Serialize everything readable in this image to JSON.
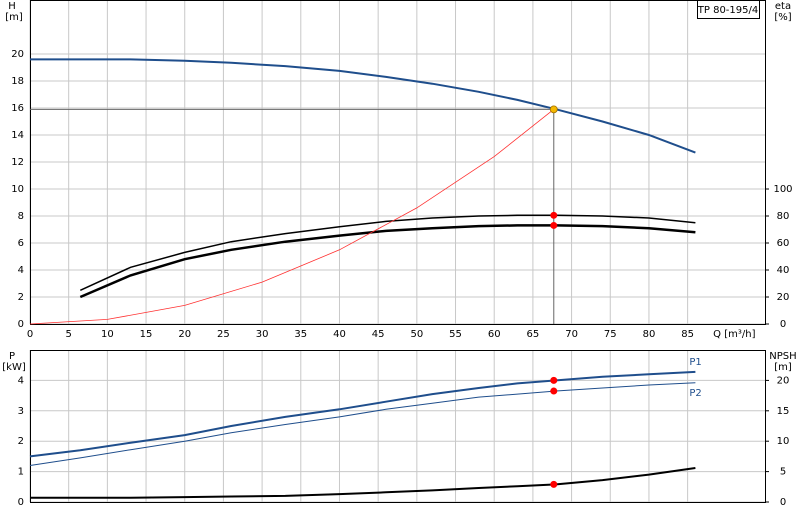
{
  "title": "TP 80-195/4",
  "chart_data": [
    {
      "type": "line",
      "ylabel": "H",
      "yunit": "[m]",
      "y2label": "eta",
      "y2unit": "[%]",
      "xlabel": "Q [m³/h]",
      "xlim": [
        0,
        95
      ],
      "xticks": [
        0,
        5,
        10,
        15,
        20,
        25,
        30,
        35,
        40,
        45,
        50,
        55,
        60,
        65,
        70,
        75,
        80,
        85
      ],
      "show_xtick_labels": true,
      "ylim": [
        0,
        24
      ],
      "yticks": [
        0,
        2,
        4,
        6,
        8,
        10,
        12,
        14,
        16,
        18,
        20
      ],
      "y2lim": [
        0,
        240
      ],
      "y2ticks": [
        0,
        20,
        40,
        60,
        80,
        100
      ],
      "grid": true,
      "series": [
        {
          "color": "#1f4e8c",
          "width": 2,
          "x": [
            0,
            6.5,
            13,
            20,
            26,
            33,
            40,
            46,
            52,
            58,
            63,
            68,
            74,
            80,
            86
          ],
          "values": [
            19.6,
            19.6,
            19.6,
            19.5,
            19.35,
            19.1,
            18.75,
            18.3,
            17.8,
            17.2,
            16.6,
            15.9,
            15.0,
            14.0,
            12.7
          ]
        },
        {
          "color": "#000000",
          "width": 1.5,
          "axis": "y2",
          "x": [
            6.5,
            13,
            20,
            26,
            33,
            40,
            46,
            52,
            58,
            63,
            68,
            74,
            80,
            86
          ],
          "values": [
            25,
            42,
            53,
            61,
            67,
            72,
            76,
            78.5,
            80,
            80.5,
            80.5,
            80,
            78.5,
            75
          ]
        },
        {
          "color": "#000000",
          "width": 2.5,
          "axis": "y2",
          "x": [
            6.5,
            13,
            20,
            26,
            33,
            40,
            46,
            52,
            58,
            63,
            68,
            74,
            80,
            86
          ],
          "values": [
            20,
            36,
            48,
            55,
            61,
            65.5,
            69,
            71,
            72.5,
            73,
            73,
            72.5,
            71,
            68
          ]
        },
        {
          "color": "#ff3030",
          "width": 0.8,
          "x": [
            0,
            10,
            20,
            30,
            40,
            50,
            60,
            67.7
          ],
          "values": [
            0,
            0.34,
            1.38,
            3.1,
            5.5,
            8.6,
            12.4,
            15.9
          ]
        }
      ],
      "points": [
        {
          "x": 67.7,
          "y": 15.9,
          "color": "#f5b800",
          "guides": true
        },
        {
          "x": 67.7,
          "y": 80.5,
          "axis": "y2",
          "color": "#ff0000"
        },
        {
          "x": 67.7,
          "y": 73,
          "axis": "y2",
          "color": "#ff0000"
        }
      ]
    },
    {
      "type": "line",
      "ylabel": "P",
      "yunit": "[kW]",
      "y2label": "NPSH",
      "y2unit": "[m]",
      "xlim": [
        0,
        95
      ],
      "xticks": [
        0,
        5,
        10,
        15,
        20,
        25,
        30,
        35,
        40,
        45,
        50,
        55,
        60,
        65,
        70,
        75,
        80,
        85
      ],
      "show_xtick_labels": false,
      "ylim": [
        0,
        5
      ],
      "yticks": [
        0,
        1,
        2,
        3,
        4
      ],
      "y2lim": [
        0,
        25
      ],
      "y2ticks": [
        0,
        5,
        10,
        15,
        20
      ],
      "grid": true,
      "series": [
        {
          "name": "P1",
          "color": "#1f4e8c",
          "width": 2,
          "x": [
            0,
            6.5,
            13,
            20,
            26,
            33,
            40,
            46,
            52,
            58,
            63,
            68,
            74,
            80,
            86
          ],
          "values": [
            1.5,
            1.7,
            1.95,
            2.2,
            2.5,
            2.8,
            3.05,
            3.3,
            3.55,
            3.75,
            3.9,
            4.0,
            4.12,
            4.2,
            4.28
          ]
        },
        {
          "name": "P2",
          "color": "#1f4e8c",
          "width": 1,
          "x": [
            0,
            6.5,
            13,
            20,
            26,
            33,
            40,
            46,
            52,
            58,
            63,
            68,
            74,
            80,
            86
          ],
          "values": [
            1.2,
            1.45,
            1.72,
            2.0,
            2.28,
            2.55,
            2.8,
            3.05,
            3.25,
            3.45,
            3.55,
            3.65,
            3.75,
            3.85,
            3.92
          ]
        },
        {
          "color": "#000000",
          "width": 2,
          "axis": "y2",
          "x": [
            0,
            6.5,
            13,
            20,
            26,
            33,
            40,
            46,
            52,
            58,
            63,
            68,
            74,
            80,
            86
          ],
          "values": [
            0.7,
            0.7,
            0.7,
            0.8,
            0.9,
            1.0,
            1.3,
            1.6,
            1.9,
            2.3,
            2.6,
            2.9,
            3.6,
            4.5,
            5.6
          ]
        }
      ],
      "points": [
        {
          "x": 67.7,
          "y": 4.0,
          "color": "#ff0000"
        },
        {
          "x": 67.7,
          "y": 3.65,
          "color": "#ff0000"
        },
        {
          "x": 67.7,
          "y": 2.9,
          "axis": "y2",
          "color": "#ff0000"
        }
      ]
    }
  ]
}
